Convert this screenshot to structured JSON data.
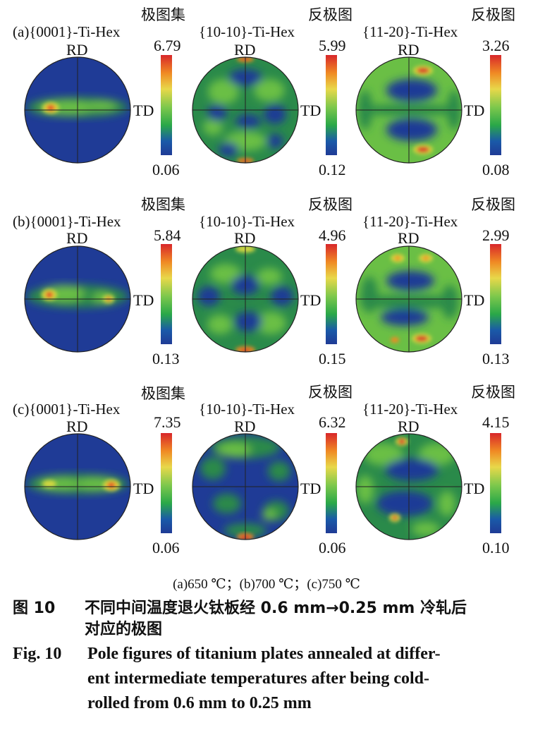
{
  "colorscale": [
    "#1f3b96",
    "#2a8a4a",
    "#6abf45",
    "#d7d840",
    "#f08a24",
    "#d8262a"
  ],
  "rows": [
    {
      "panel_label": "(a)",
      "plots": [
        {
          "title": "{0001}-Ti-Hex",
          "header": "极图集",
          "rd": "RD",
          "td": "TD",
          "max": "6.79",
          "min": "0.06"
        },
        {
          "title": "{10-10}-Ti-Hex",
          "header": "反极图",
          "rd": "RD",
          "td": "TD",
          "max": "5.99",
          "min": "0.12"
        },
        {
          "title": "{11-20}-Ti-Hex",
          "header": "反极图",
          "rd": "RD",
          "td": "TD",
          "max": "3.26",
          "min": "0.08"
        }
      ]
    },
    {
      "panel_label": "(b)",
      "plots": [
        {
          "title": "{0001}-Ti-Hex",
          "header": "极图集",
          "rd": "RD",
          "td": "TD",
          "max": "5.84",
          "min": "0.13"
        },
        {
          "title": "{10-10}-Ti-Hex",
          "header": "反极图",
          "rd": "RD",
          "td": "TD",
          "max": "4.96",
          "min": "0.15"
        },
        {
          "title": "{11-20}-Ti-Hex",
          "header": "反极图",
          "rd": "RD",
          "td": "TD",
          "max": "2.99",
          "min": "0.13"
        }
      ]
    },
    {
      "panel_label": "(c)",
      "plots": [
        {
          "title": "{0001}-Ti-Hex",
          "header": "极图集",
          "rd": "RD",
          "td": "TD",
          "max": "7.35",
          "min": "0.06"
        },
        {
          "title": "{10-10}-Ti-Hex",
          "header": "反极图",
          "rd": "RD",
          "td": "TD",
          "max": "6.32",
          "min": "0.06"
        },
        {
          "title": "{11-20}-Ti-Hex",
          "header": "反极图",
          "rd": "RD",
          "td": "TD",
          "max": "4.15",
          "min": "0.10"
        }
      ]
    }
  ],
  "subcaption": "(a)650 ℃；(b)700 ℃；(c)750 ℃",
  "caption_cn": {
    "label": "图 10",
    "line1": "不同中间温度退火钛板经 0.6 mm→0.25 mm 冷轧后",
    "line2": "对应的极图"
  },
  "caption_en": {
    "label": "Fig. 10",
    "line1": "Pole figures of titanium plates annealed at differ-",
    "line2": "ent intermediate temperatures after being cold-",
    "line3": "rolled from 0.6 mm to 0.25 mm"
  }
}
